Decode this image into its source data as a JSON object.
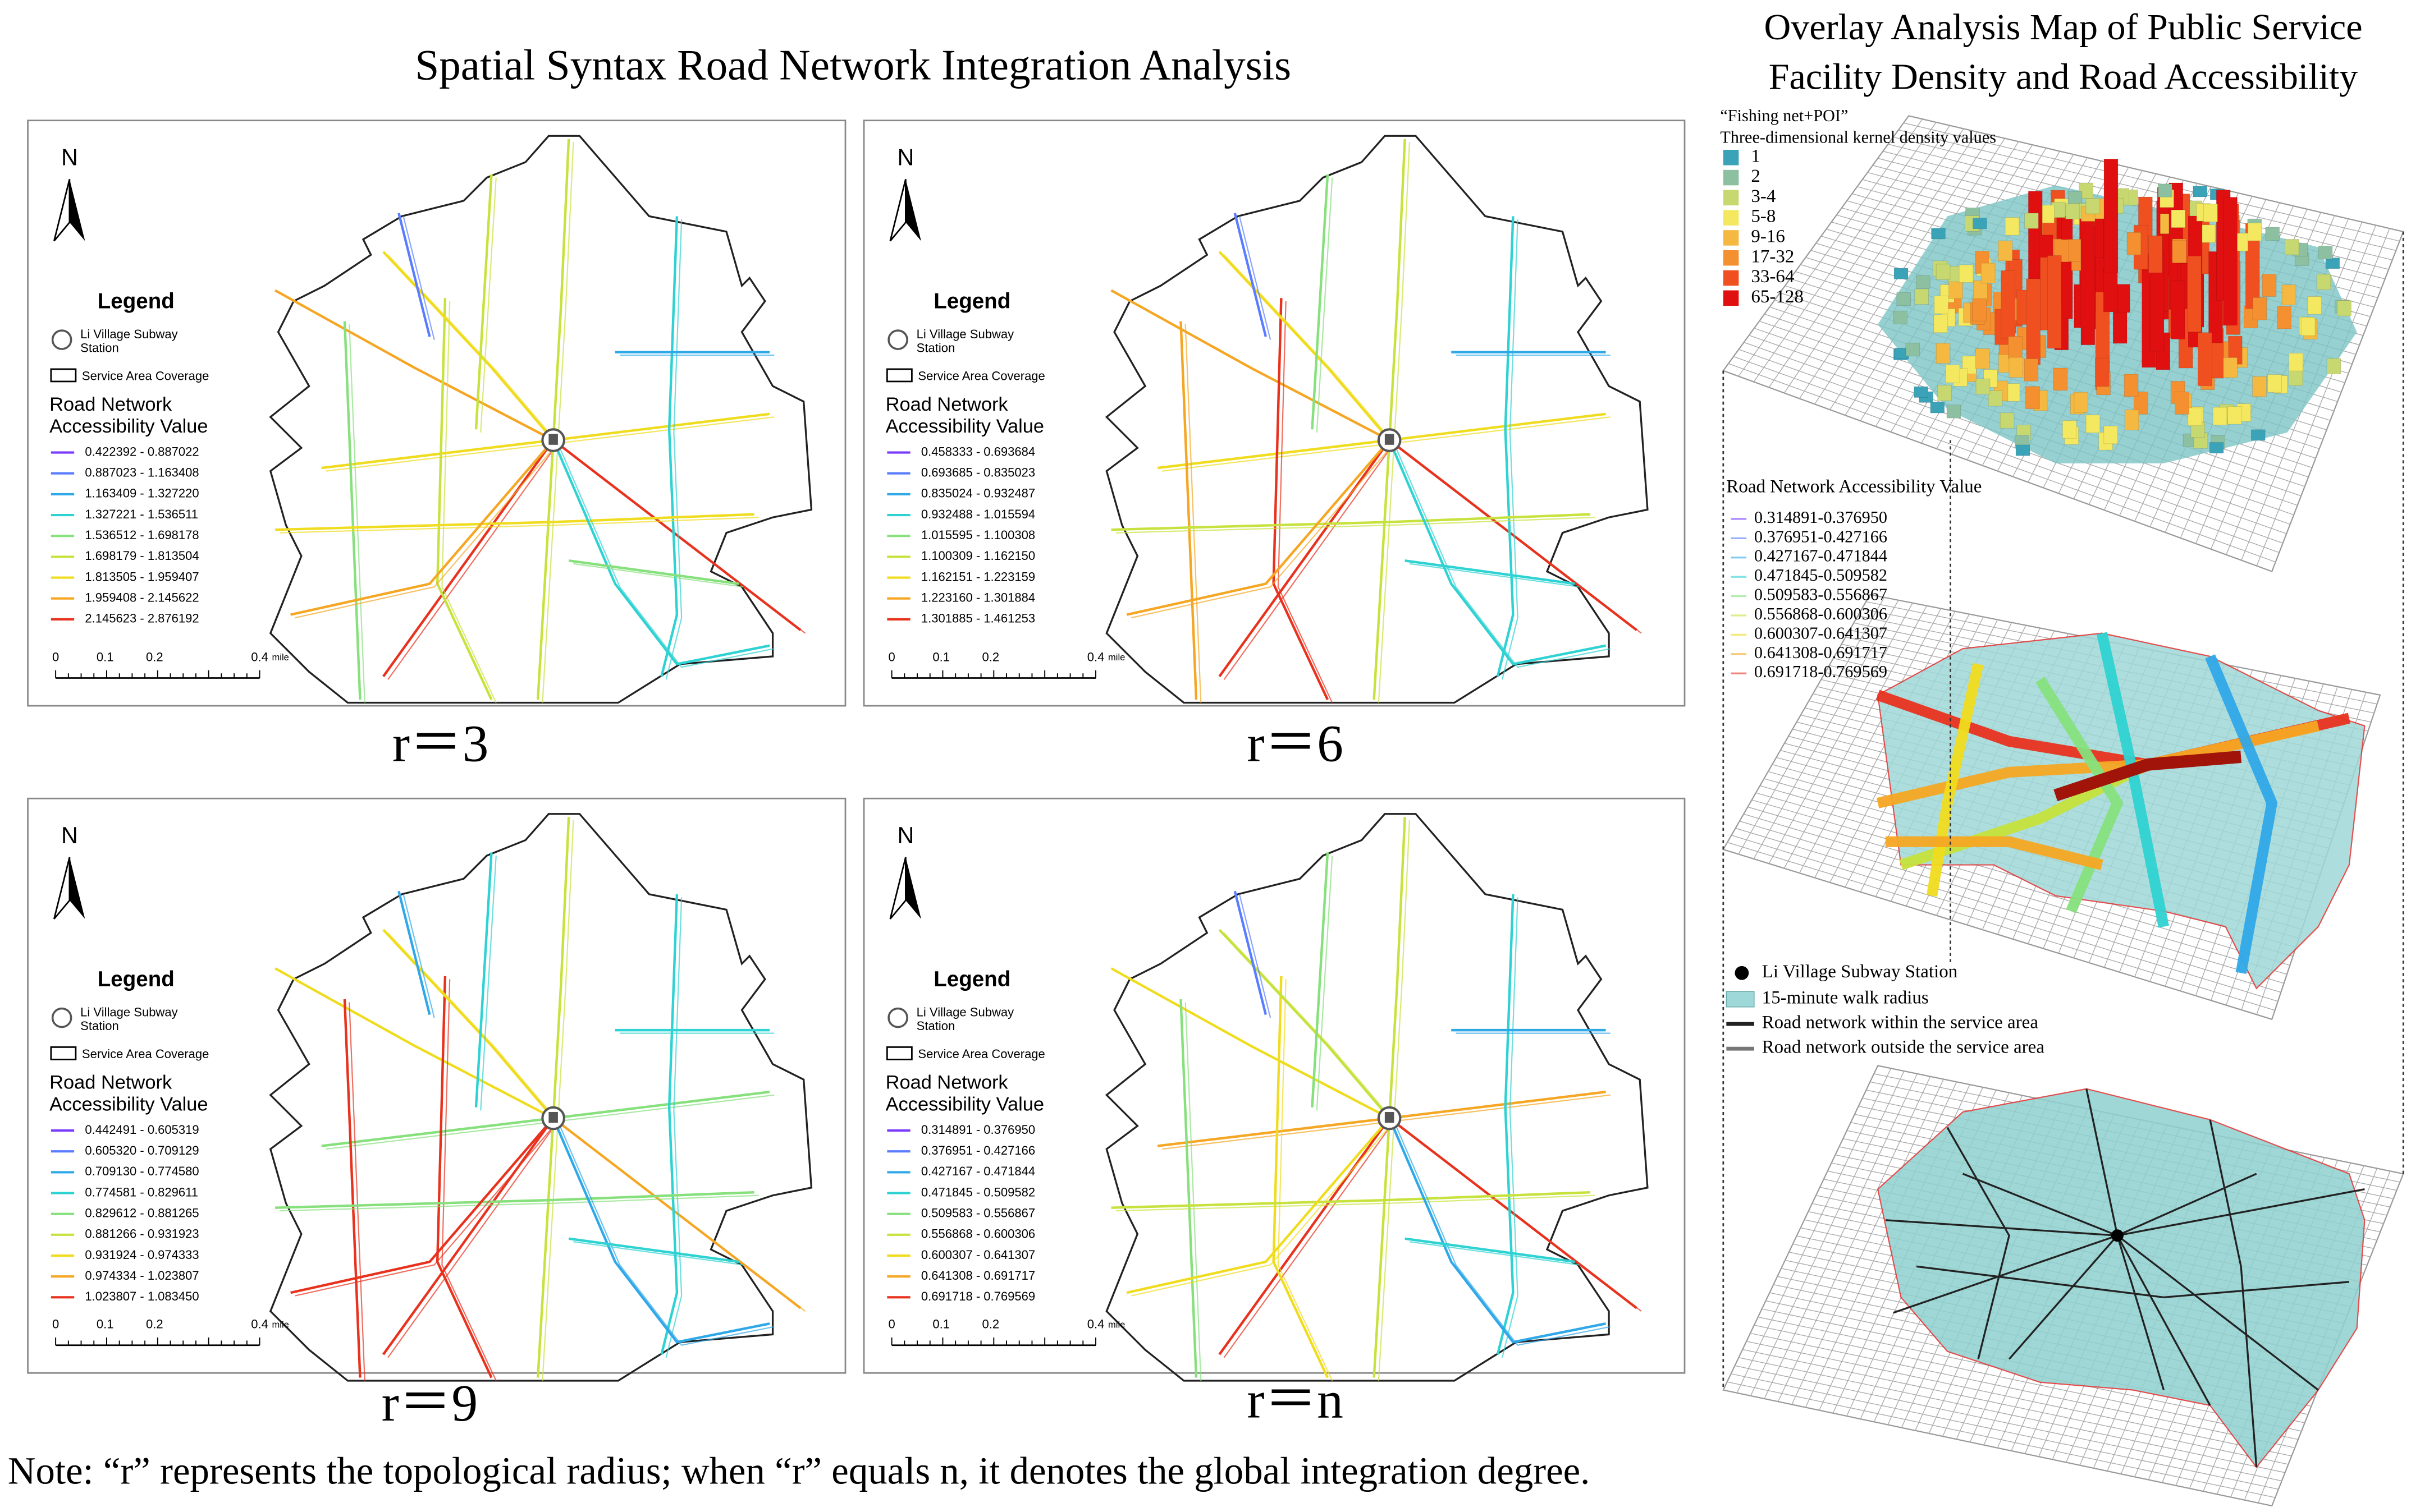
{
  "left_title": "Spatial Syntax Road Network Integration Analysis",
  "map_legend": {
    "north": "N",
    "title": "Legend",
    "station": "Li Village Subway Station",
    "coverage": "Service Area Coverage",
    "value_title": "Road Network Accessibility Value",
    "scale_labels": [
      "0",
      "0.1",
      "0.2",
      "0.4"
    ],
    "scale_unit": "mile",
    "colors": [
      "#7a3cff",
      "#5a7dff",
      "#2fa8e8",
      "#2fd2d2",
      "#86e07c",
      "#c6e23c",
      "#f0dc1e",
      "#f5a623",
      "#e8321e"
    ]
  },
  "maps": [
    {
      "caption": "r＝3",
      "ranges": [
        "0.422392 - 0.887022",
        "0.887023 - 1.163408",
        "1.163409 - 1.327220",
        "1.327221 - 1.536511",
        "1.536512 - 1.698178",
        "1.698179 - 1.813504",
        "1.813505 - 1.959407",
        "1.959408 - 2.145622",
        "2.145623 - 2.876192"
      ]
    },
    {
      "caption": "r＝6",
      "ranges": [
        "0.458333 - 0.693684",
        "0.693685 - 0.835023",
        "0.835024 - 0.932487",
        "0.932488 - 1.015594",
        "1.015595 - 1.100308",
        "1.100309 - 1.162150",
        "1.162151 - 1.223159",
        "1.223160 - 1.301884",
        "1.301885 - 1.461253"
      ]
    },
    {
      "caption": "r＝9",
      "ranges": [
        "0.442491 - 0.605319",
        "0.605320 - 0.709129",
        "0.709130 - 0.774580",
        "0.774581 - 0.829611",
        "0.829612 - 0.881265",
        "0.881266 - 0.931923",
        "0.931924 - 0.974333",
        "0.974334 - 1.023807",
        "1.023807 - 1.083450"
      ]
    },
    {
      "caption": "r＝n",
      "ranges": [
        "0.314891 - 0.376950",
        "0.376951 - 0.427166",
        "0.427167 - 0.471844",
        "0.471845 - 0.509582",
        "0.509583 - 0.556867",
        "0.556868 - 0.600306",
        "0.600307 - 0.641307",
        "0.641308 - 0.691717",
        "0.691718 - 0.769569"
      ]
    }
  ],
  "overlay": {
    "title_lines": [
      "Overlay Analysis Map of Public Service",
      "Facility Density and Road Accessibility"
    ],
    "density_title_lines": [
      "“Fishing net+POI”",
      "Three-dimensional kernel density values"
    ],
    "density_classes": [
      "1",
      "2",
      "3-4",
      "5-8",
      "9-16",
      "17-32",
      "33-64",
      "65-128"
    ],
    "density_colors": [
      "#3aa3b8",
      "#8cc0a0",
      "#c8d870",
      "#f4e860",
      "#f5b840",
      "#f59030",
      "#f05020",
      "#e01010"
    ],
    "accessibility_title": "Road Network Accessibility Value",
    "accessibility_ranges": [
      "0.314891-0.376950",
      "0.376951-0.427166",
      "0.427167-0.471844",
      "0.471845-0.509582",
      "0.509583-0.556867",
      "0.556868-0.600306",
      "0.600307-0.641307",
      "0.641308-0.691717",
      "0.691718-0.769569"
    ],
    "bottom_legend": [
      "Li Village Subway Station",
      "15-minute walk radius",
      "Road network within the service area",
      "Road network outside the service area"
    ]
  },
  "note": "Note: “r” represents the topological radius; when “r” equals n, it denotes the global integration degree."
}
